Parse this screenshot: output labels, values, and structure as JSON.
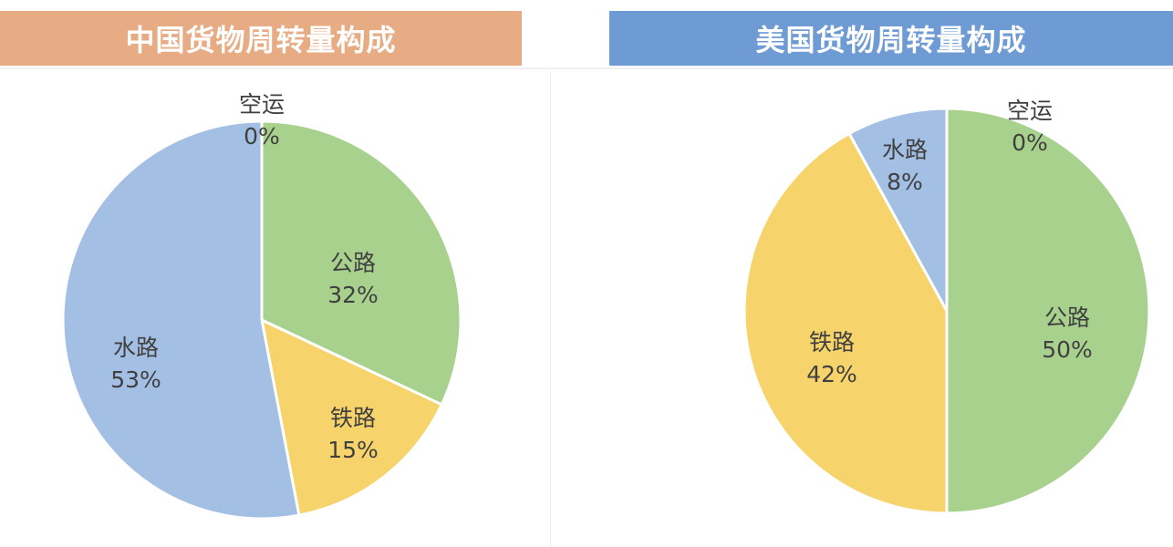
{
  "chart_data": [
    {
      "type": "pie",
      "title": "中国货物周转量构成",
      "header_color": "#e8ac84",
      "categories": [
        "公路",
        "铁路",
        "水路",
        "空运"
      ],
      "values": [
        32,
        15,
        53,
        0
      ],
      "value_labels": [
        "32%",
        "15%",
        "53%",
        "0%"
      ],
      "colors": [
        "#a9d18e",
        "#f6d46b",
        "#a3bfe3",
        "#a3bfe3"
      ]
    },
    {
      "type": "pie",
      "title": "美国货物周转量构成",
      "header_color": "#6e9bd3",
      "categories": [
        "公路",
        "铁路",
        "水路",
        "空运"
      ],
      "values": [
        50,
        42,
        8,
        0
      ],
      "value_labels": [
        "50%",
        "42%",
        "8%",
        "0%"
      ],
      "colors": [
        "#a9d18e",
        "#f6d46b",
        "#a3bfe3",
        "#a3bfe3"
      ]
    }
  ]
}
